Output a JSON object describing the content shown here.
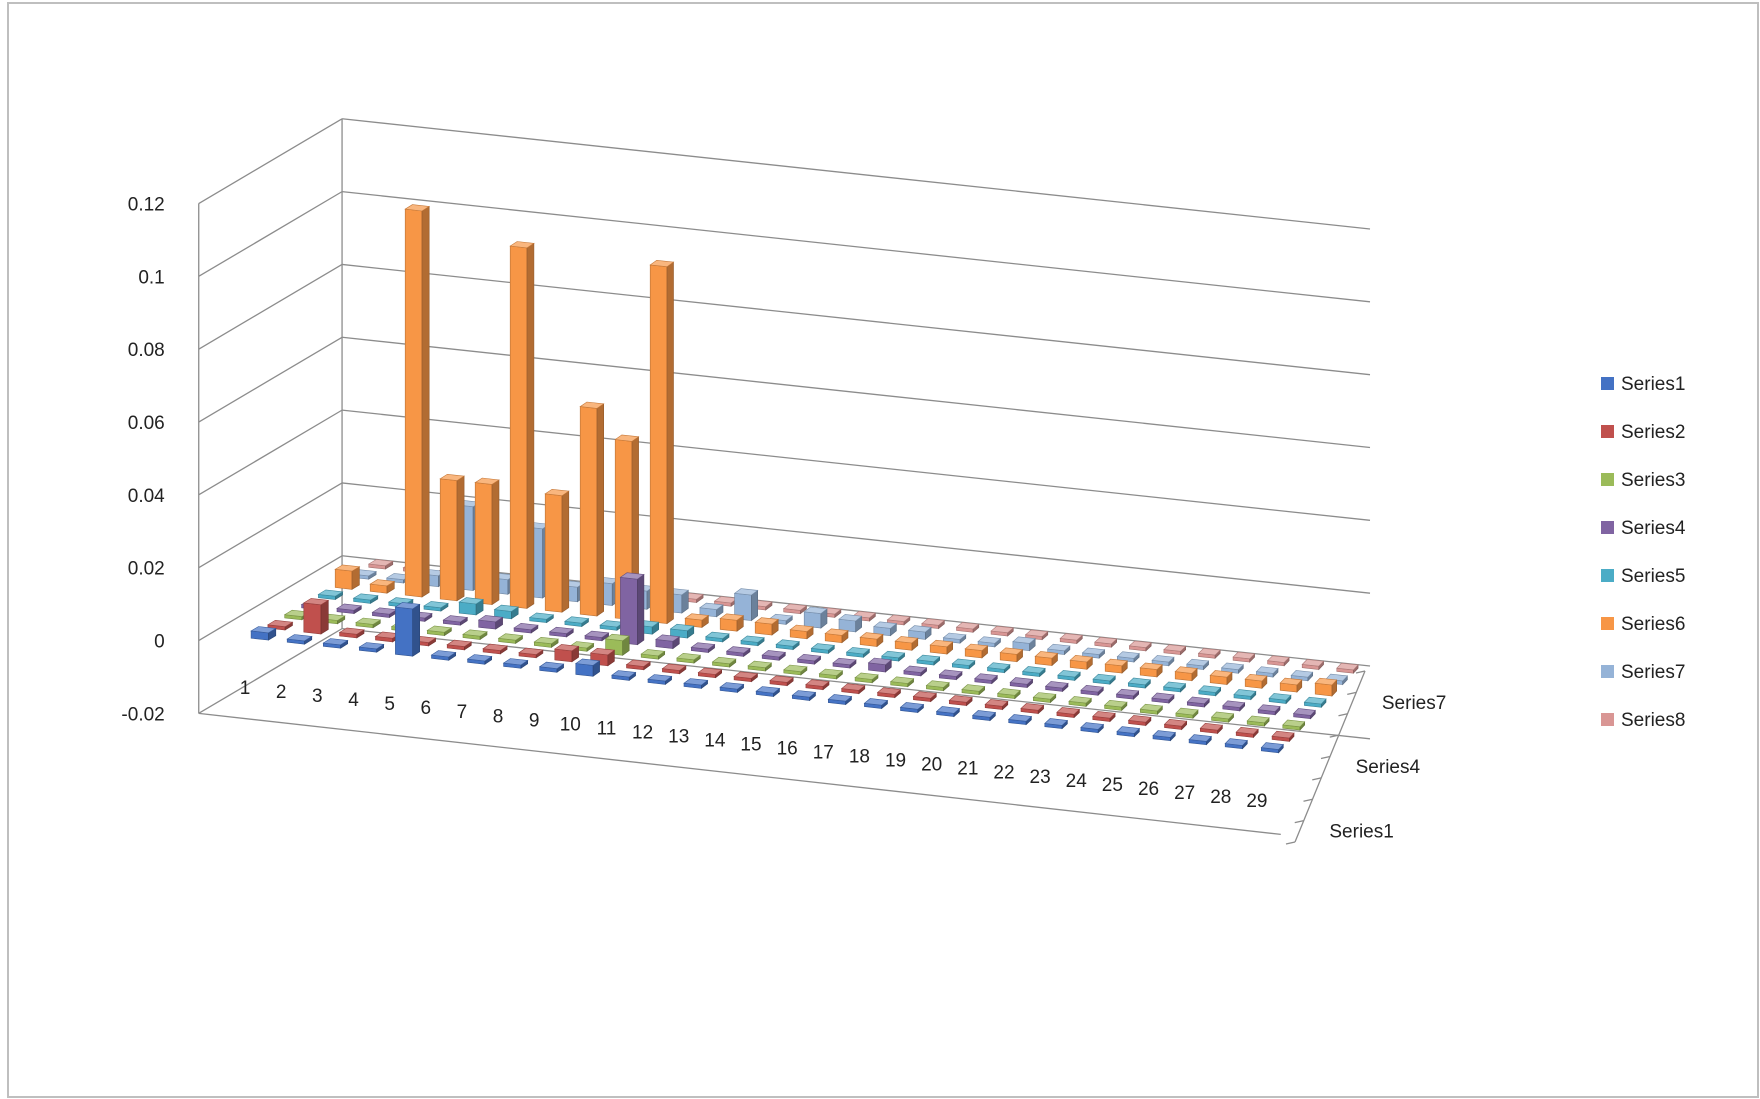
{
  "chart_data": {
    "type": "bar",
    "subtype": "3d-column",
    "title": "",
    "xlabel": "",
    "ylabel": "",
    "ylim": [
      -0.02,
      0.12
    ],
    "yticks": [
      "0.12",
      "0.1",
      "0.08",
      "0.06",
      "0.04",
      "0.02",
      "0",
      "-0.02"
    ],
    "grid": true,
    "legend_position": "right",
    "categories": [
      "1",
      "2",
      "3",
      "4",
      "5",
      "6",
      "7",
      "8",
      "9",
      "10",
      "11",
      "12",
      "13",
      "14",
      "15",
      "16",
      "17",
      "18",
      "19",
      "20",
      "21",
      "22",
      "23",
      "24",
      "25",
      "26",
      "27",
      "28",
      "29"
    ],
    "depth_labels": [
      "Series1",
      "Series4",
      "Series7"
    ],
    "series": [
      {
        "name": "Series1",
        "color": "#4472c4",
        "values": [
          0.002,
          0,
          0,
          0,
          0.013,
          0,
          0,
          0,
          0.001,
          0.003,
          0,
          0,
          0,
          0,
          0,
          0,
          0,
          0,
          0,
          0,
          0,
          0,
          0,
          0,
          0,
          0,
          0,
          0,
          0
        ]
      },
      {
        "name": "Series2",
        "color": "#c0504d",
        "values": [
          0,
          0.008,
          0.001,
          0.001,
          0,
          0,
          0,
          0,
          0.003,
          0.003,
          0,
          0,
          0,
          0,
          0,
          0,
          0,
          0,
          0,
          0,
          0,
          0,
          0,
          0,
          0,
          0,
          0,
          0,
          0
        ]
      },
      {
        "name": "Series3",
        "color": "#9bbb59",
        "values": [
          0,
          0,
          0,
          0,
          0,
          0,
          0,
          0.001,
          0,
          0.004,
          0,
          0,
          0,
          0,
          0,
          0,
          0,
          0,
          0,
          0,
          0,
          0,
          0,
          0,
          0,
          0,
          0,
          0,
          0
        ]
      },
      {
        "name": "Series4",
        "color": "#8064a2",
        "values": [
          0,
          0,
          0,
          0,
          0,
          0.002,
          0,
          0,
          0,
          0.018,
          0.002,
          0,
          0,
          0,
          0,
          0,
          0.002,
          0,
          0,
          0,
          0,
          0,
          0,
          0,
          0,
          0,
          0,
          0,
          0
        ]
      },
      {
        "name": "Series5",
        "color": "#4bacc6",
        "values": [
          0,
          0,
          0,
          0,
          0.003,
          0.002,
          0,
          0,
          0,
          0.002,
          0.002,
          0,
          0,
          0,
          0,
          0,
          0,
          0,
          0,
          0,
          0,
          0,
          0,
          0,
          0,
          0,
          0,
          0,
          0
        ]
      },
      {
        "name": "Series6",
        "color": "#f79646",
        "values": [
          0.005,
          0.002,
          0.106,
          0.033,
          0.033,
          0.099,
          0.032,
          0.057,
          0.049,
          0.098,
          0.002,
          0.003,
          0.003,
          0.002,
          0.002,
          0.002,
          0.002,
          0.002,
          0.002,
          0.002,
          0.002,
          0.002,
          0.002,
          0.002,
          0.002,
          0.002,
          0.002,
          0.002,
          0.003
        ]
      },
      {
        "name": "Series7",
        "color": "#95b3d7",
        "values": [
          0,
          0,
          0.003,
          0.023,
          0.004,
          0.019,
          0.004,
          0.006,
          0.005,
          0.005,
          0.002,
          0.007,
          0.001,
          0.004,
          0.003,
          0.002,
          0.002,
          0.001,
          0.001,
          0.002,
          0.001,
          0.001,
          0.001,
          0.001,
          0.001,
          0.001,
          0.001,
          0.001,
          0.001
        ]
      },
      {
        "name": "Series8",
        "color": "#d99694",
        "values": [
          0,
          0,
          0,
          0,
          0,
          0,
          0,
          0,
          0,
          0,
          0,
          0,
          0,
          0,
          0,
          0,
          0,
          0,
          0,
          0,
          0,
          0,
          0,
          0,
          0,
          0,
          0,
          0,
          0
        ]
      }
    ]
  }
}
